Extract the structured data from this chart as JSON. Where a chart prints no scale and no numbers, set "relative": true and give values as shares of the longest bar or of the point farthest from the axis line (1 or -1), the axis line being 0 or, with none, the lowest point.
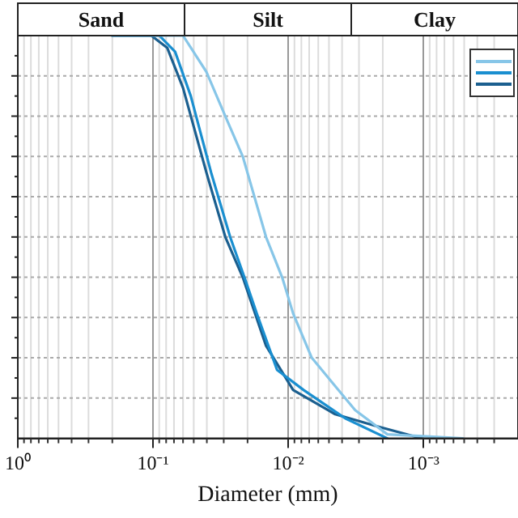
{
  "chart_data": {
    "type": "line",
    "xlabel": "Diameter (mm)",
    "log": "x",
    "relative": true,
    "grid": true,
    "marker": "none",
    "line_style": "solid",
    "xlim": [
      1,
      0.0002
    ],
    "xticks": [
      {
        "value": 1,
        "label": "10⁰"
      },
      {
        "value": 0.1,
        "label": "10⁻¹"
      },
      {
        "value": 0.01,
        "label": "10⁻²"
      },
      {
        "value": 0.001,
        "label": "10⁻³"
      }
    ],
    "annotations": [
      "Sand",
      "Silt",
      "Clay"
    ],
    "series": [
      {
        "color": "#87c6e8",
        "x": [
          0.2,
          0.06,
          0.0403,
          0.0292,
          0.0217,
          0.0146,
          0.0111,
          0.0092,
          0.0067,
          0.0045,
          0.0032,
          0.00185,
          0.00051
        ],
        "values": [
          1,
          1,
          0.91,
          0.8,
          0.7,
          0.5,
          0.4,
          0.31,
          0.2,
          0.13,
          0.07,
          0.01,
          0
        ]
      },
      {
        "color": "#1a8fd0",
        "x": [
          0.2,
          0.0898,
          0.0687,
          0.0526,
          0.0372,
          0.0269,
          0.0206,
          0.0171,
          0.0121,
          0.0077,
          0.0038,
          0.00185
        ],
        "values": [
          1,
          1,
          0.96,
          0.85,
          0.66,
          0.5,
          0.39,
          0.31,
          0.17,
          0.12,
          0.05,
          0
        ]
      },
      {
        "color": "#1b5f8f",
        "x": [
          0.2,
          0.103,
          0.0786,
          0.06,
          0.0403,
          0.0292,
          0.0217,
          0.0146,
          0.0092,
          0.0045,
          0.0022,
          0.00103
        ],
        "values": [
          1,
          1,
          0.97,
          0.87,
          0.66,
          0.5,
          0.4,
          0.23,
          0.12,
          0.06,
          0.03,
          0
        ]
      }
    ]
  }
}
